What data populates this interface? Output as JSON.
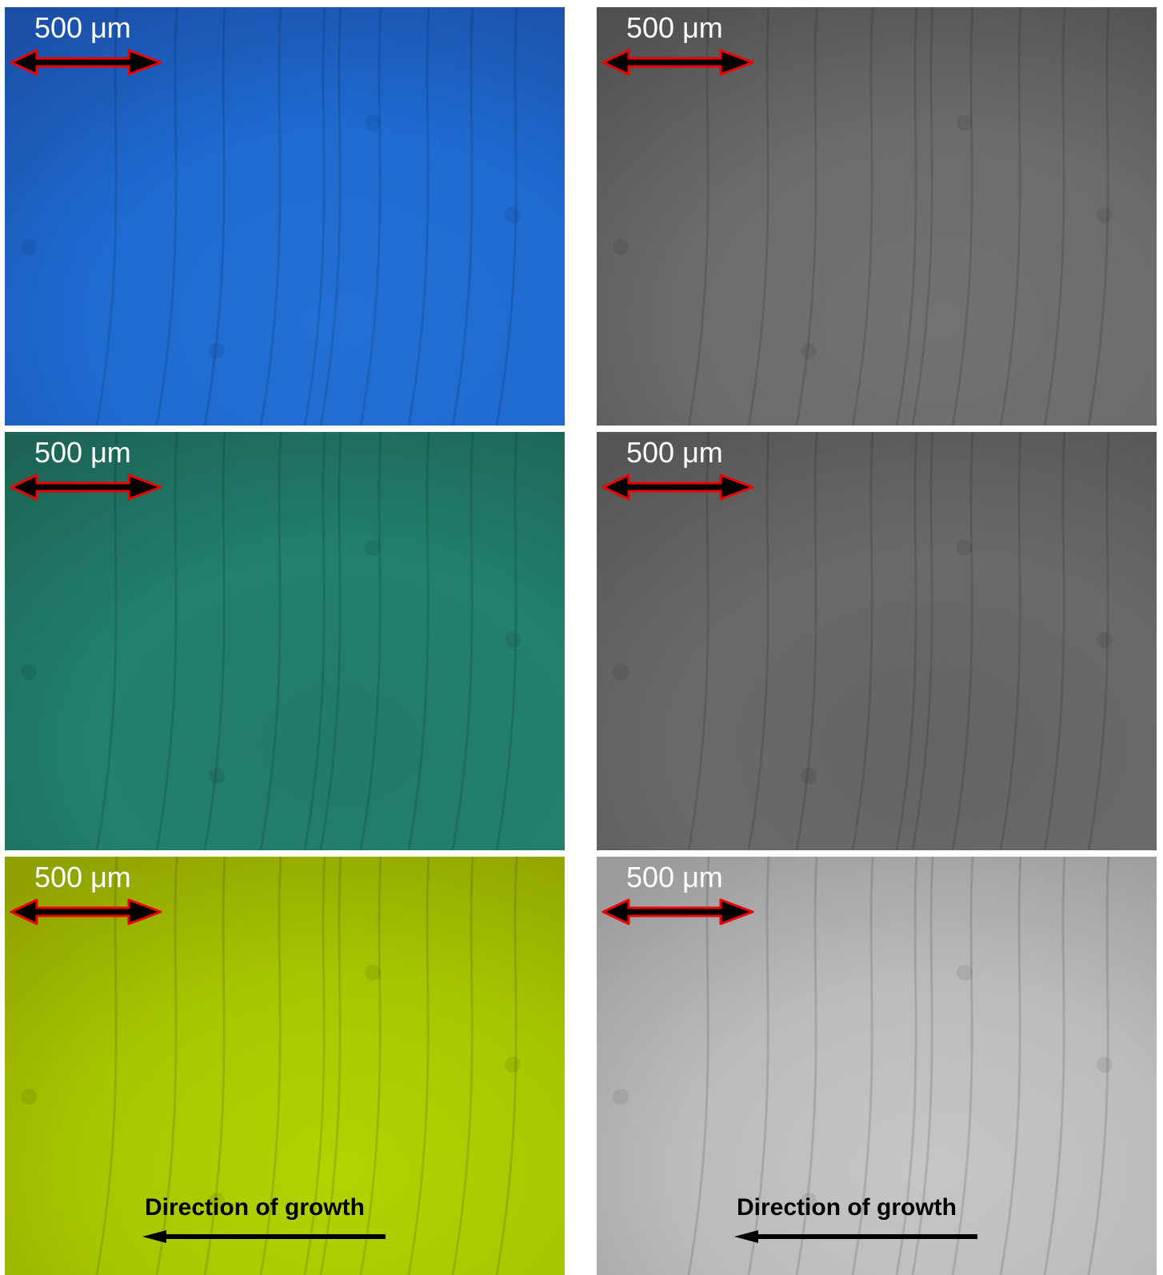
{
  "panels": [
    {
      "scale_label": "500 μm"
    },
    {
      "scale_label": "500 μm"
    },
    {
      "scale_label": "500 μm"
    },
    {
      "scale_label": "500 μm"
    },
    {
      "scale_label": "500 μm",
      "direction_label": "Direction of growth"
    },
    {
      "scale_label": "500 μm",
      "direction_label": "Direction of growth"
    }
  ]
}
